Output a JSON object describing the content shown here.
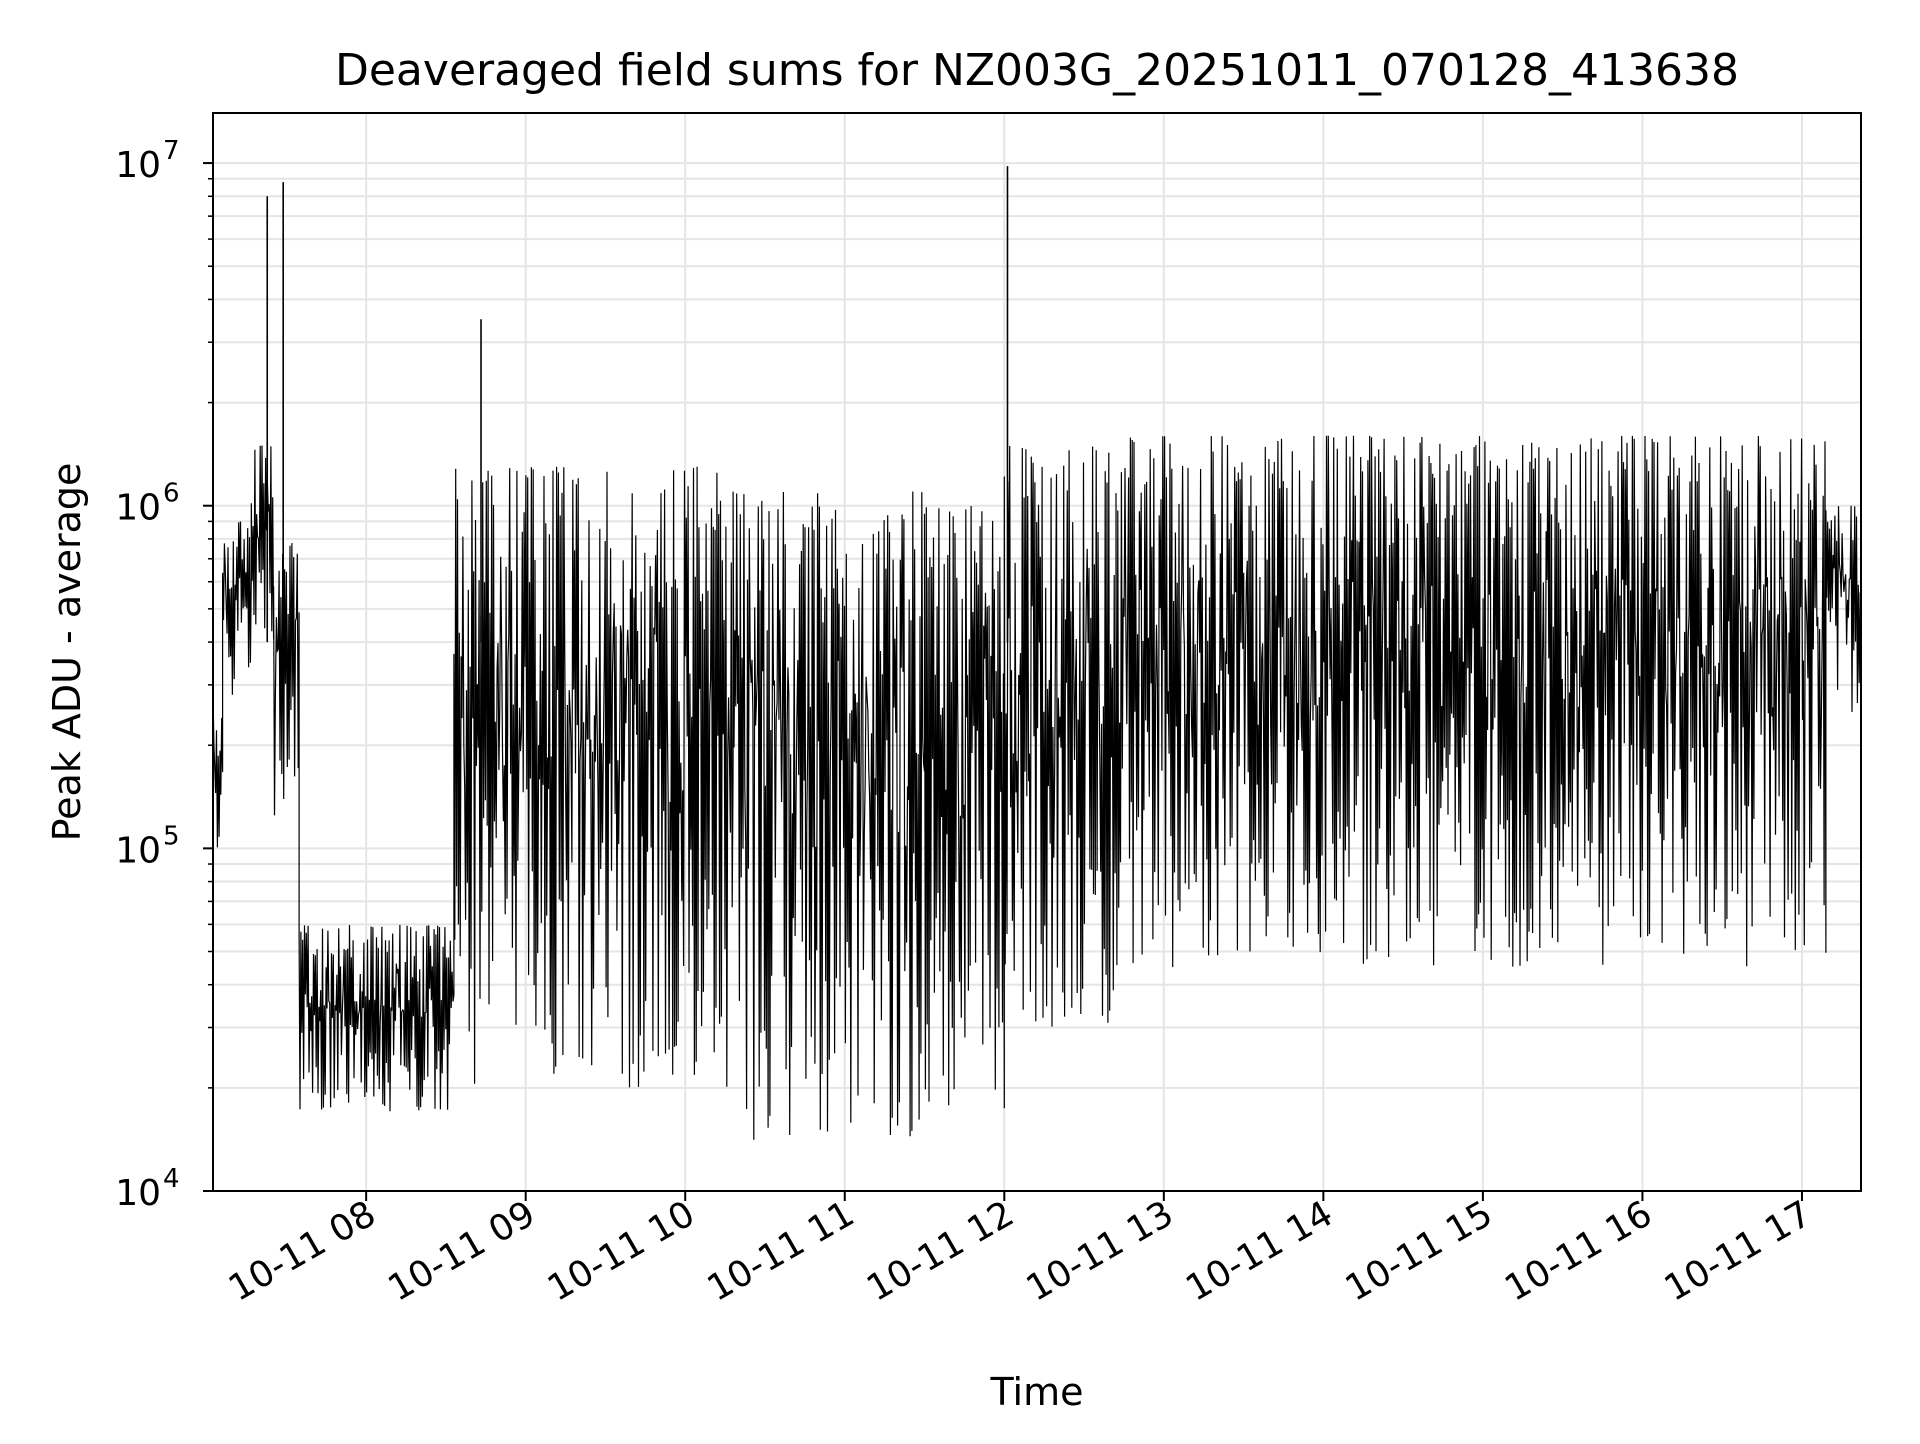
{
  "chart_data": {
    "type": "line",
    "title": "Deaveraged field sums for NZ003G_20251011_070128_413638",
    "xlabel": "Time",
    "ylabel": "Peak ADU - average",
    "yscale": "log",
    "ylim": [
      10000,
      14000000
    ],
    "xlim_hours": [
      7.04,
      17.37
    ],
    "grid": true,
    "legend": "none",
    "line_color": "#000000",
    "grid_color": "#e5e5e5",
    "x_ticks": [
      {
        "value": 8,
        "label": "10-11 08"
      },
      {
        "value": 9,
        "label": "10-11 09"
      },
      {
        "value": 10,
        "label": "10-11 10"
      },
      {
        "value": 11,
        "label": "10-11 11"
      },
      {
        "value": 12,
        "label": "10-11 12"
      },
      {
        "value": 13,
        "label": "10-11 13"
      },
      {
        "value": 14,
        "label": "10-11 14"
      },
      {
        "value": 15,
        "label": "10-11 15"
      },
      {
        "value": 16,
        "label": "10-11 16"
      },
      {
        "value": 17,
        "label": "10-11 17"
      }
    ],
    "y_ticks": [
      {
        "value": 10000,
        "base": "10",
        "exp": "4"
      },
      {
        "value": 100000,
        "base": "10",
        "exp": "5"
      },
      {
        "value": 1000000,
        "base": "10",
        "exp": "6"
      },
      {
        "value": 10000000,
        "base": "10",
        "exp": "7"
      }
    ],
    "segments": [
      {
        "start": 7.04,
        "end": 7.1,
        "low": 100000,
        "high": 300000
      },
      {
        "start": 7.1,
        "end": 7.28,
        "low": 280000,
        "high": 900000
      },
      {
        "start": 7.28,
        "end": 7.42,
        "low": 400000,
        "high": 1500000
      },
      {
        "start": 7.42,
        "end": 7.58,
        "low": 120000,
        "high": 800000
      },
      {
        "start": 7.58,
        "end": 8.55,
        "low": 17000,
        "high": 60000
      },
      {
        "start": 8.55,
        "end": 10.3,
        "low": 20000,
        "high": 1300000
      },
      {
        "start": 10.3,
        "end": 11.5,
        "low": 14000,
        "high": 1100000
      },
      {
        "start": 11.5,
        "end": 12.0,
        "low": 17000,
        "high": 1000000
      },
      {
        "start": 12.0,
        "end": 12.7,
        "low": 30000,
        "high": 1500000
      },
      {
        "start": 12.7,
        "end": 17.15,
        "low": 45000,
        "high": 1600000
      },
      {
        "start": 17.15,
        "end": 17.37,
        "low": 250000,
        "high": 1000000
      }
    ],
    "spikes": [
      {
        "x": 7.38,
        "y": 8000000
      },
      {
        "x": 7.48,
        "y": 8800000
      },
      {
        "x": 8.72,
        "y": 3500000
      },
      {
        "x": 12.02,
        "y": 9800000
      }
    ]
  }
}
